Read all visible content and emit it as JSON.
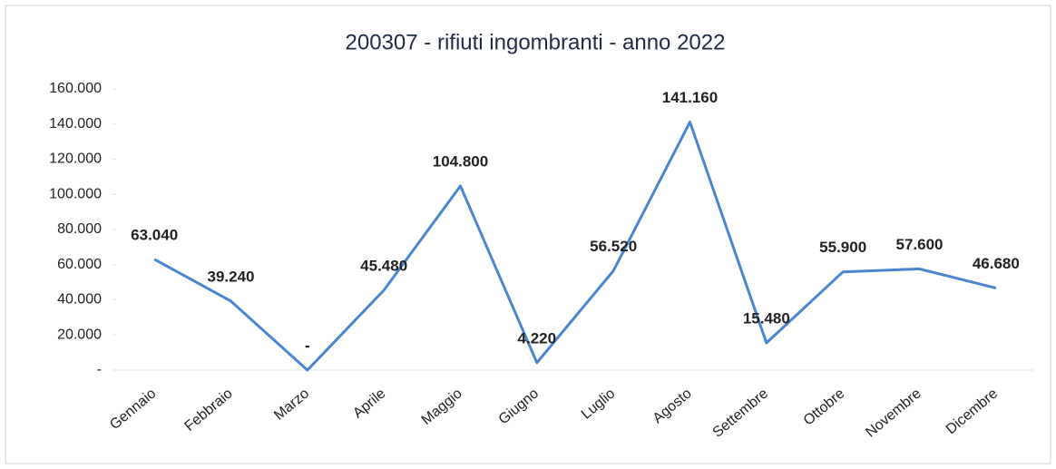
{
  "chart_data": {
    "type": "line",
    "title": "200307 - rifiuti ingombranti - anno 2022",
    "categories": [
      "Gennaio",
      "Febbraio",
      "Marzo",
      "Aprile",
      "Maggio",
      "Giugno",
      "Luglio",
      "Agosto",
      "Settembre",
      "Ottobre",
      "Novembre",
      "Dicembre"
    ],
    "values": [
      63040,
      39240,
      0,
      45480,
      104800,
      4220,
      56520,
      141160,
      15480,
      55900,
      57600,
      46680
    ],
    "value_labels": [
      "63.040",
      "39.240",
      "-",
      "45.480",
      "104.800",
      "4.220",
      "56.520",
      "141.160",
      "15.480",
      "55.900",
      "57.600",
      "46.680"
    ],
    "color": "#4a86d0",
    "ylim": [
      0,
      160000
    ],
    "yticks": [
      {
        "value": 0,
        "label": "-"
      },
      {
        "value": 20000,
        "label": "20.000"
      },
      {
        "value": 40000,
        "label": "40.000"
      },
      {
        "value": 60000,
        "label": "60.000"
      },
      {
        "value": 80000,
        "label": "80.000"
      },
      {
        "value": 100000,
        "label": "100.000"
      },
      {
        "value": 120000,
        "label": "120.000"
      },
      {
        "value": 140000,
        "label": "140.000"
      },
      {
        "value": 160000,
        "label": "160.000"
      }
    ]
  }
}
